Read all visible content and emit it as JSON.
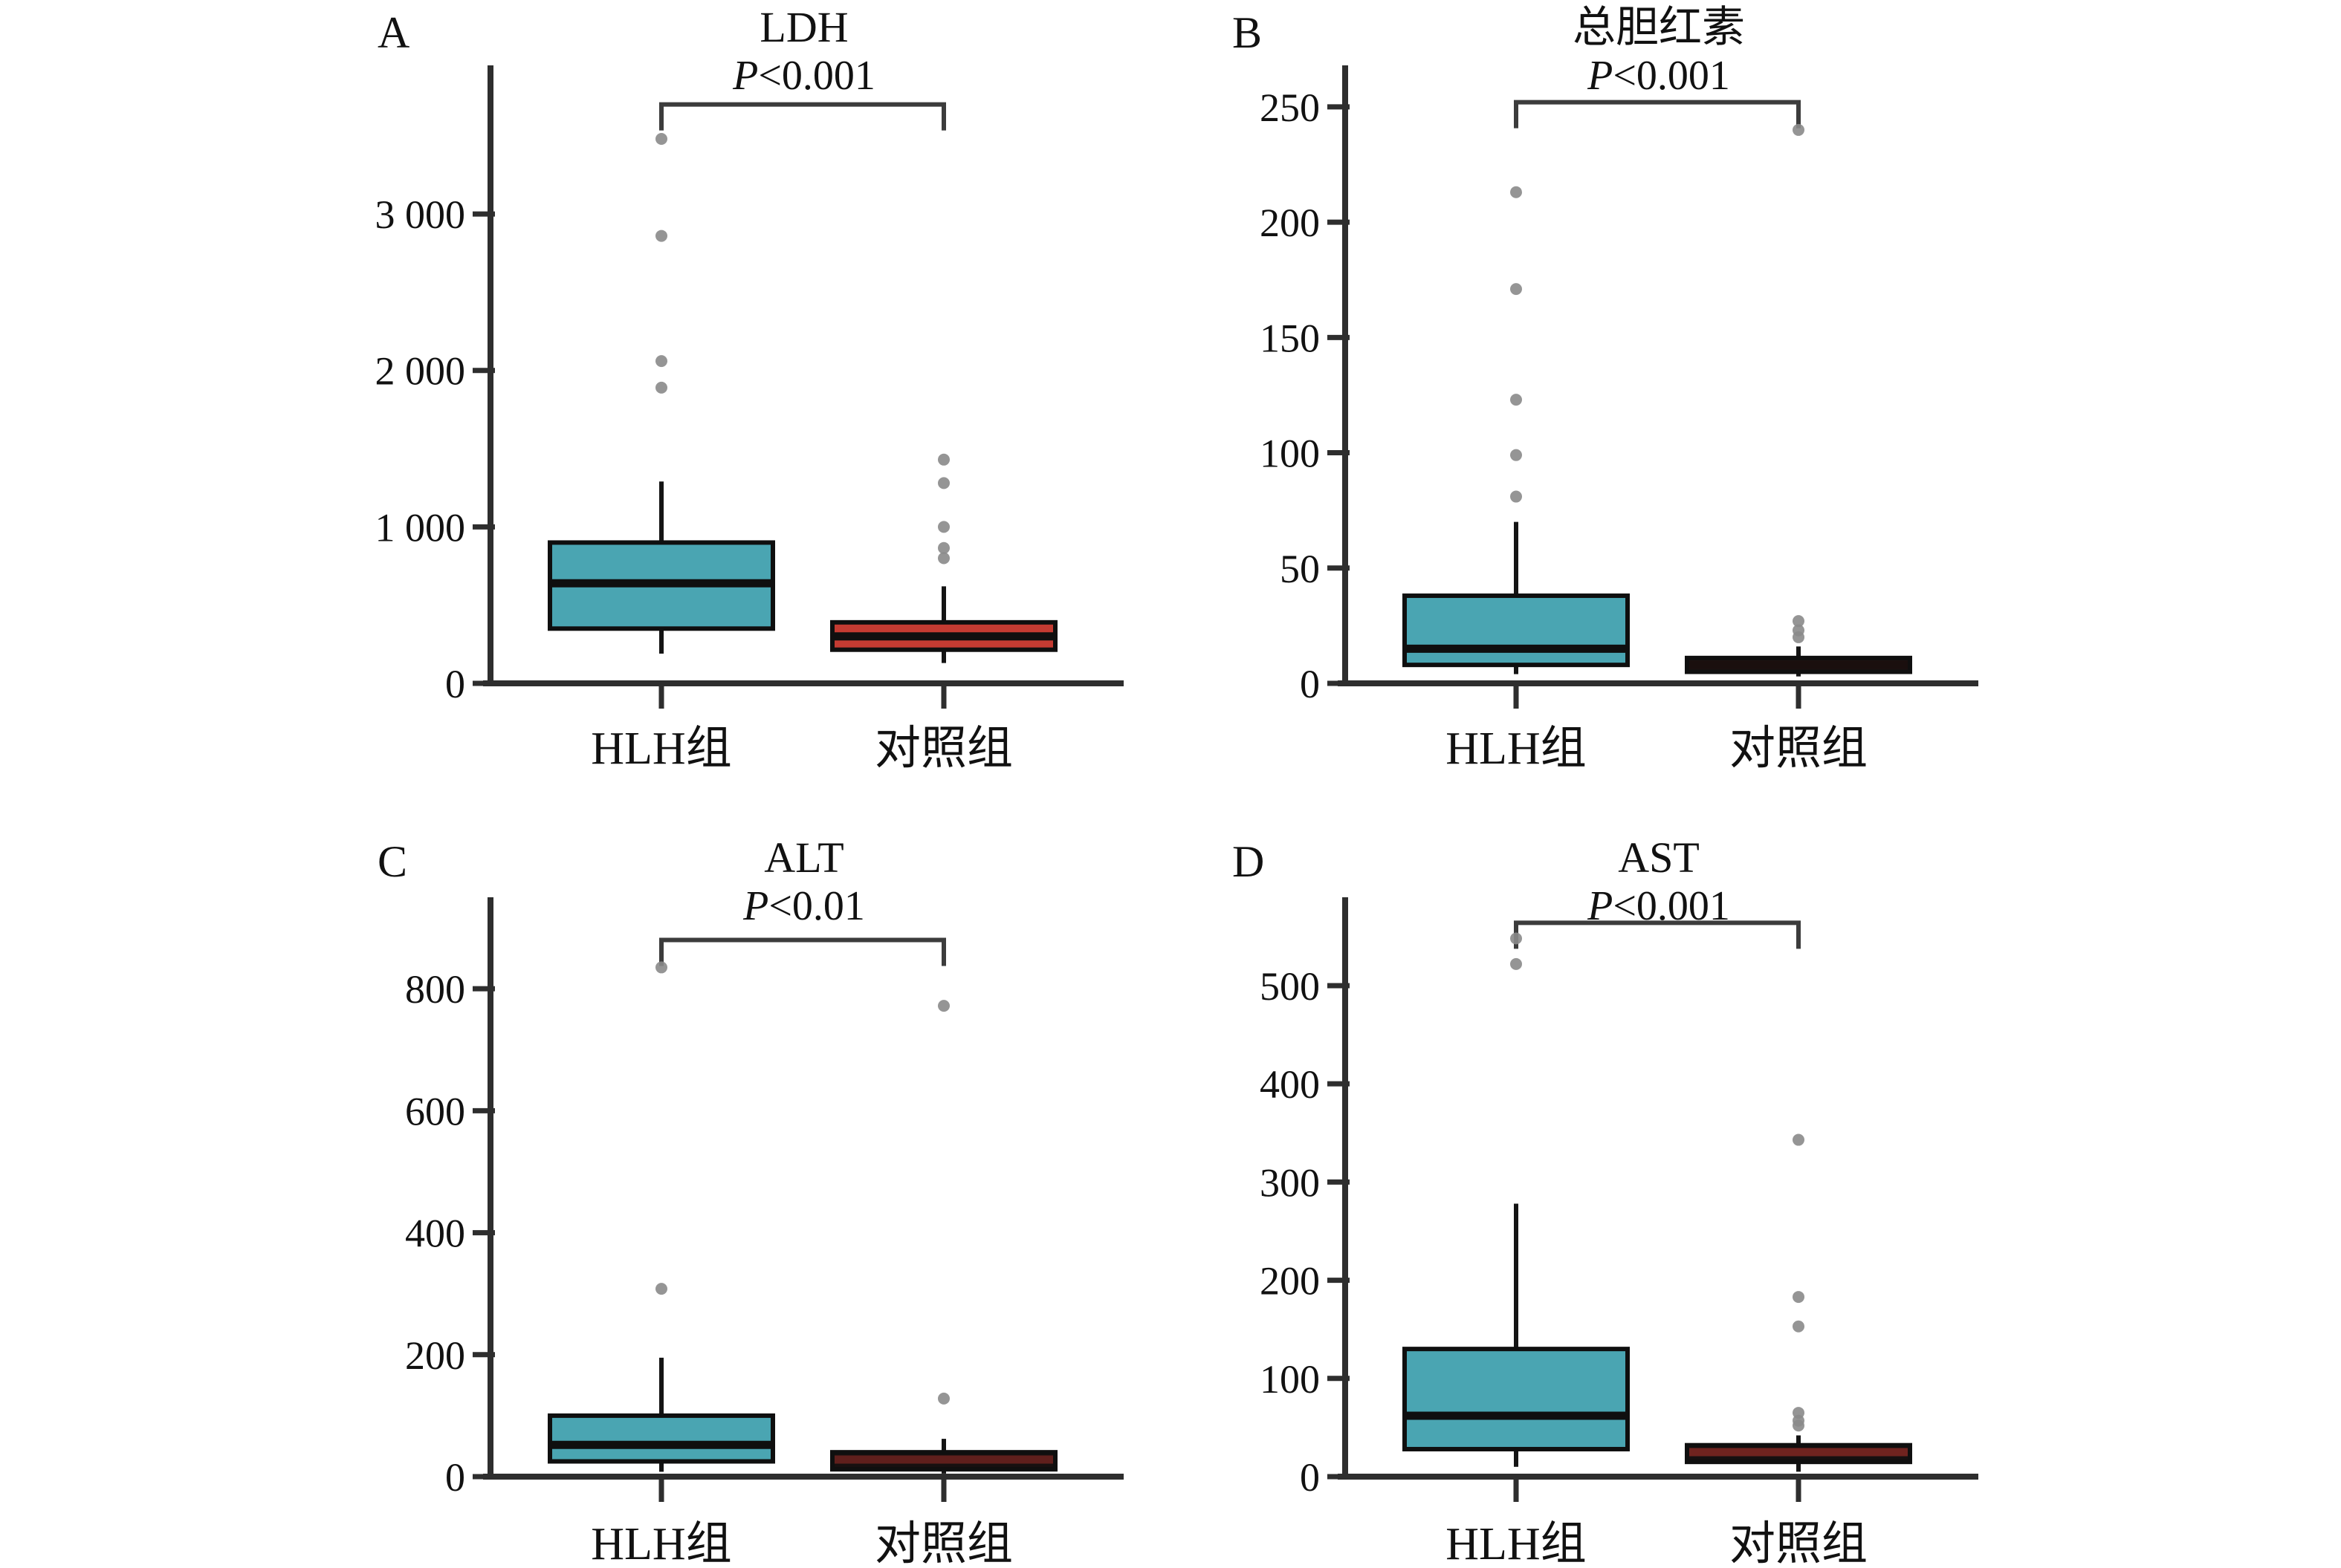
{
  "figure": {
    "background": "#ffffff",
    "style": {
      "axis_color": "#2e2e2e",
      "bracket_color": "#3c3c3c",
      "outlier_color": "#8a8a8a",
      "box_border_color": "#0f0f0f",
      "whisker_color": "#141414",
      "text_color": "#111111"
    }
  },
  "chart_data": [
    {
      "type": "box",
      "panel_letter": "A",
      "title": "LDH",
      "p_label": "P<0.001",
      "categories": [
        "HLH组",
        "对照组"
      ],
      "ylim": [
        0,
        3950
      ],
      "yticks": [
        0,
        1000,
        2000,
        3000
      ],
      "ytick_labels": [
        "0",
        "1 000",
        "2 000",
        "3 000"
      ],
      "grid": "off",
      "bracket_y": 3700,
      "series": [
        {
          "name": "HLH组",
          "fill": "#4aa5b2",
          "median_color": "#0f0f0f",
          "whisker_low": 190,
          "q1": 350,
          "median": 640,
          "q3": 900,
          "whisker_high": 1290,
          "outliers": [
            1890,
            2060,
            2860,
            3480
          ]
        },
        {
          "name": "对照组",
          "fill": "#c43b32",
          "median_color": "#0f0f0f",
          "whisker_low": 130,
          "q1": 215,
          "median": 300,
          "q3": 390,
          "whisker_high": 620,
          "outliers": [
            800,
            865,
            1000,
            1280,
            1430
          ]
        }
      ]
    },
    {
      "type": "box",
      "panel_letter": "B",
      "title": "总胆红素",
      "p_label": "P<0.001",
      "categories": [
        "HLH组",
        "对照组"
      ],
      "ylim": [
        0,
        268
      ],
      "yticks": [
        0,
        50,
        100,
        150,
        200,
        250
      ],
      "ytick_labels": [
        "0",
        "50",
        "100",
        "150",
        "200",
        "250"
      ],
      "grid": "off",
      "bracket_y": 252,
      "series": [
        {
          "name": "HLH组",
          "fill": "#4aa5b2",
          "median_color": "#0f0f0f",
          "whisker_low": 4,
          "q1": 8,
          "median": 15,
          "q3": 38,
          "whisker_high": 70,
          "outliers": [
            81,
            99,
            123,
            171,
            213
          ]
        },
        {
          "name": "对照组",
          "fill": "#1f1413",
          "median_color": "#1a0f0e",
          "whisker_low": 3,
          "q1": 5,
          "median": 8,
          "q3": 11,
          "whisker_high": 16,
          "outliers": [
            20,
            23,
            27,
            240
          ]
        }
      ]
    },
    {
      "type": "box",
      "panel_letter": "C",
      "title": "ALT",
      "p_label": "P<0.01",
      "categories": [
        "HLH组",
        "对照组"
      ],
      "ylim": [
        0,
        950
      ],
      "yticks": [
        0,
        200,
        400,
        600,
        800
      ],
      "ytick_labels": [
        "0",
        "200",
        "400",
        "600",
        "800"
      ],
      "grid": "off",
      "bracket_y": 880,
      "series": [
        {
          "name": "HLH组",
          "fill": "#4aa5b2",
          "median_color": "#0f0f0f",
          "whisker_low": 8,
          "q1": 25,
          "median": 52,
          "q3": 100,
          "whisker_high": 195,
          "outliers": [
            308,
            835
          ]
        },
        {
          "name": "对照组",
          "fill": "#171010",
          "median_color": "#5f1f1c",
          "whisker_low": 5,
          "q1": 12,
          "median": 28,
          "q3": 40,
          "whisker_high": 62,
          "outliers": [
            128,
            772
          ]
        }
      ]
    },
    {
      "type": "box",
      "panel_letter": "D",
      "title": "AST",
      "p_label": "P<0.001",
      "categories": [
        "HLH组",
        "对照组"
      ],
      "ylim": [
        0,
        590
      ],
      "yticks": [
        0,
        100,
        200,
        300,
        400,
        500
      ],
      "ytick_labels": [
        "0",
        "100",
        "200",
        "300",
        "400",
        "500"
      ],
      "grid": "off",
      "bracket_y": 564,
      "series": [
        {
          "name": "HLH组",
          "fill": "#4aa5b2",
          "median_color": "#0f0f0f",
          "whisker_low": 10,
          "q1": 28,
          "median": 62,
          "q3": 130,
          "whisker_high": 278,
          "outliers": [
            522,
            548
          ]
        },
        {
          "name": "对照组",
          "fill": "#161010",
          "median_color": "#70231f",
          "whisker_low": 5,
          "q1": 15,
          "median": 25,
          "q3": 32,
          "whisker_high": 42,
          "outliers": [
            52,
            57,
            65,
            153,
            183,
            343
          ]
        }
      ]
    }
  ]
}
